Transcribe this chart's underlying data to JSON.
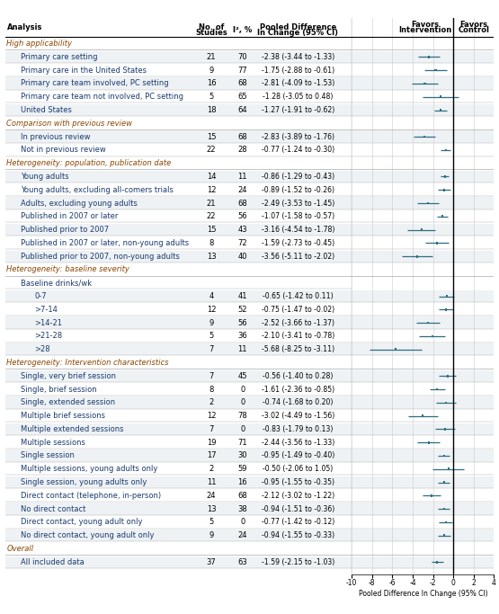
{
  "xlabel": "Pooled Difference In Change (95% CI)",
  "xlim": [
    -10,
    4
  ],
  "xticks": [
    -10,
    -8,
    -6,
    -4,
    -2,
    0,
    2,
    4
  ],
  "rows": [
    {
      "label": "High applicability",
      "type": "header",
      "indent": 0
    },
    {
      "label": "Primary care setting",
      "type": "data",
      "indent": 1,
      "n": 21,
      "i2": 70,
      "mean": -2.38,
      "ci_lo": -3.44,
      "ci_hi": -1.33,
      "ci_str": "-2.38 (-3.44 to -1.33)"
    },
    {
      "label": "Primary care in the United States",
      "type": "data",
      "indent": 1,
      "n": 9,
      "i2": 77,
      "mean": -1.75,
      "ci_lo": -2.88,
      "ci_hi": -0.61,
      "ci_str": "-1.75 (-2.88 to -0.61)"
    },
    {
      "label": "Primary care team involved, PC setting",
      "type": "data",
      "indent": 1,
      "n": 16,
      "i2": 68,
      "mean": -2.81,
      "ci_lo": -4.09,
      "ci_hi": -1.53,
      "ci_str": "-2.81 (-4.09 to -1.53)"
    },
    {
      "label": "Primary care team not involved, PC setting",
      "type": "data",
      "indent": 1,
      "n": 5,
      "i2": 65,
      "mean": -1.28,
      "ci_lo": -3.05,
      "ci_hi": 0.48,
      "ci_str": "-1.28 (-3.05 to 0.48)"
    },
    {
      "label": "United States",
      "type": "data",
      "indent": 1,
      "n": 18,
      "i2": 64,
      "mean": -1.27,
      "ci_lo": -1.91,
      "ci_hi": -0.62,
      "ci_str": "-1.27 (-1.91 to -0.62)"
    },
    {
      "label": "Comparison with previous review",
      "type": "header",
      "indent": 0
    },
    {
      "label": "In previous review",
      "type": "data",
      "indent": 1,
      "n": 15,
      "i2": 68,
      "mean": -2.83,
      "ci_lo": -3.89,
      "ci_hi": -1.76,
      "ci_str": "-2.83 (-3.89 to -1.76)"
    },
    {
      "label": "Not in previous review",
      "type": "data",
      "indent": 1,
      "n": 22,
      "i2": 28,
      "mean": -0.77,
      "ci_lo": -1.24,
      "ci_hi": -0.3,
      "ci_str": "-0.77 (-1.24 to -0.30)"
    },
    {
      "label": "Heterogeneity: population, publication date",
      "type": "header",
      "indent": 0
    },
    {
      "label": "Young adults",
      "type": "data",
      "indent": 1,
      "n": 14,
      "i2": 11,
      "mean": -0.86,
      "ci_lo": -1.29,
      "ci_hi": -0.43,
      "ci_str": "-0.86 (-1.29 to -0.43)"
    },
    {
      "label": "Young adults, excluding all-comers trials",
      "type": "data",
      "indent": 1,
      "n": 12,
      "i2": 24,
      "mean": -0.89,
      "ci_lo": -1.52,
      "ci_hi": -0.26,
      "ci_str": "-0.89 (-1.52 to -0.26)"
    },
    {
      "label": "Adults, excluding young adults",
      "type": "data",
      "indent": 1,
      "n": 21,
      "i2": 68,
      "mean": -2.49,
      "ci_lo": -3.53,
      "ci_hi": -1.45,
      "ci_str": "-2.49 (-3.53 to -1.45)"
    },
    {
      "label": "Published in 2007 or later",
      "type": "data",
      "indent": 1,
      "n": 22,
      "i2": 56,
      "mean": -1.07,
      "ci_lo": -1.58,
      "ci_hi": -0.57,
      "ci_str": "-1.07 (-1.58 to -0.57)"
    },
    {
      "label": "Published prior to 2007",
      "type": "data",
      "indent": 1,
      "n": 15,
      "i2": 43,
      "mean": -3.16,
      "ci_lo": -4.54,
      "ci_hi": -1.78,
      "ci_str": "-3.16 (-4.54 to -1.78)"
    },
    {
      "label": "Published in 2007 or later, non-young adults",
      "type": "data",
      "indent": 1,
      "n": 8,
      "i2": 72,
      "mean": -1.59,
      "ci_lo": -2.73,
      "ci_hi": -0.45,
      "ci_str": "-1.59 (-2.73 to -0.45)"
    },
    {
      "label": "Published prior to 2007, non-young adults",
      "type": "data",
      "indent": 1,
      "n": 13,
      "i2": 40,
      "mean": -3.56,
      "ci_lo": -5.11,
      "ci_hi": -2.02,
      "ci_str": "-3.56 (-5.11 to -2.02)"
    },
    {
      "label": "Heterogeneity: baseline severity",
      "type": "header",
      "indent": 0
    },
    {
      "label": "Baseline drinks/wk",
      "type": "subheader",
      "indent": 1
    },
    {
      "label": "0-7",
      "type": "data",
      "indent": 2,
      "n": 4,
      "i2": 41,
      "mean": -0.65,
      "ci_lo": -1.42,
      "ci_hi": 0.11,
      "ci_str": "-0.65 (-1.42 to 0.11)"
    },
    {
      "label": ">7-14",
      "type": "data",
      "indent": 2,
      "n": 12,
      "i2": 52,
      "mean": -0.75,
      "ci_lo": -1.47,
      "ci_hi": -0.02,
      "ci_str": "-0.75 (-1.47 to -0.02)"
    },
    {
      "label": ">14-21",
      "type": "data",
      "indent": 2,
      "n": 9,
      "i2": 56,
      "mean": -2.52,
      "ci_lo": -3.66,
      "ci_hi": -1.37,
      "ci_str": "-2.52 (-3.66 to -1.37)"
    },
    {
      "label": ">21-28",
      "type": "data",
      "indent": 2,
      "n": 5,
      "i2": 36,
      "mean": -2.1,
      "ci_lo": -3.41,
      "ci_hi": -0.78,
      "ci_str": "-2.10 (-3.41 to -0.78)"
    },
    {
      "label": ">28",
      "type": "data",
      "indent": 2,
      "n": 7,
      "i2": 11,
      "mean": -5.68,
      "ci_lo": -8.25,
      "ci_hi": -3.11,
      "ci_str": "-5.68 (-8.25 to -3.11)"
    },
    {
      "label": "Heterogeneity: Intervention characteristics",
      "type": "header",
      "indent": 0
    },
    {
      "label": "Single, very brief session",
      "type": "data",
      "indent": 1,
      "n": 7,
      "i2": 45,
      "mean": -0.56,
      "ci_lo": -1.4,
      "ci_hi": 0.28,
      "ci_str": "-0.56 (-1.40 to 0.28)"
    },
    {
      "label": "Single, brief session",
      "type": "data",
      "indent": 1,
      "n": 8,
      "i2": 0,
      "mean": -1.61,
      "ci_lo": -2.36,
      "ci_hi": -0.85,
      "ci_str": "-1.61 (-2.36 to -0.85)"
    },
    {
      "label": "Single, extended session",
      "type": "data",
      "indent": 1,
      "n": 2,
      "i2": 0,
      "mean": -0.74,
      "ci_lo": -1.68,
      "ci_hi": 0.2,
      "ci_str": "-0.74 (-1.68 to 0.20)"
    },
    {
      "label": "Multiple brief sessions",
      "type": "data",
      "indent": 1,
      "n": 12,
      "i2": 78,
      "mean": -3.02,
      "ci_lo": -4.49,
      "ci_hi": -1.56,
      "ci_str": "-3.02 (-4.49 to -1.56)"
    },
    {
      "label": "Multiple extended sessions",
      "type": "data",
      "indent": 1,
      "n": 7,
      "i2": 0,
      "mean": -0.83,
      "ci_lo": -1.79,
      "ci_hi": 0.13,
      "ci_str": "-0.83 (-1.79 to 0.13)"
    },
    {
      "label": "Multiple sessions",
      "type": "data",
      "indent": 1,
      "n": 19,
      "i2": 71,
      "mean": -2.44,
      "ci_lo": -3.56,
      "ci_hi": -1.33,
      "ci_str": "-2.44 (-3.56 to -1.33)"
    },
    {
      "label": "Single session",
      "type": "data",
      "indent": 1,
      "n": 17,
      "i2": 30,
      "mean": -0.95,
      "ci_lo": -1.49,
      "ci_hi": -0.4,
      "ci_str": "-0.95 (-1.49 to -0.40)"
    },
    {
      "label": "Multiple sessions, young adults only",
      "type": "data",
      "indent": 1,
      "n": 2,
      "i2": 59,
      "mean": -0.5,
      "ci_lo": -2.06,
      "ci_hi": 1.05,
      "ci_str": "-0.50 (-2.06 to 1.05)"
    },
    {
      "label": "Single session, young adults only",
      "type": "data",
      "indent": 1,
      "n": 11,
      "i2": 16,
      "mean": -0.95,
      "ci_lo": -1.55,
      "ci_hi": -0.35,
      "ci_str": "-0.95 (-1.55 to -0.35)"
    },
    {
      "label": "Direct contact (telephone, in-person)",
      "type": "data",
      "indent": 1,
      "n": 24,
      "i2": 68,
      "mean": -2.12,
      "ci_lo": -3.02,
      "ci_hi": -1.22,
      "ci_str": "-2.12 (-3.02 to -1.22)"
    },
    {
      "label": "No direct contact",
      "type": "data",
      "indent": 1,
      "n": 13,
      "i2": 38,
      "mean": -0.94,
      "ci_lo": -1.51,
      "ci_hi": -0.36,
      "ci_str": "-0.94 (-1.51 to -0.36)"
    },
    {
      "label": "Direct contact, young adult only",
      "type": "data",
      "indent": 1,
      "n": 5,
      "i2": 0,
      "mean": -0.77,
      "ci_lo": -1.42,
      "ci_hi": -0.12,
      "ci_str": "-0.77 (-1.42 to -0.12)"
    },
    {
      "label": "No direct contact, young adult only",
      "type": "data",
      "indent": 1,
      "n": 9,
      "i2": 24,
      "mean": -0.94,
      "ci_lo": -1.55,
      "ci_hi": -0.33,
      "ci_str": "-0.94 (-1.55 to -0.33)"
    },
    {
      "label": "Overall",
      "type": "header",
      "indent": 0
    },
    {
      "label": "All included data",
      "type": "data",
      "indent": 1,
      "n": 37,
      "i2": 63,
      "mean": -1.59,
      "ci_lo": -2.15,
      "ci_hi": -1.03,
      "ci_str": "-1.59 (-2.15 to -1.03)"
    }
  ],
  "marker_color": "#2E6E7E",
  "header_color": "#8B4500",
  "data_color": "#1A3A6E",
  "sep_line_color": "#AAAAAA",
  "grid_color": "#CCCCCC",
  "stripe_color": "#EEF2F5"
}
